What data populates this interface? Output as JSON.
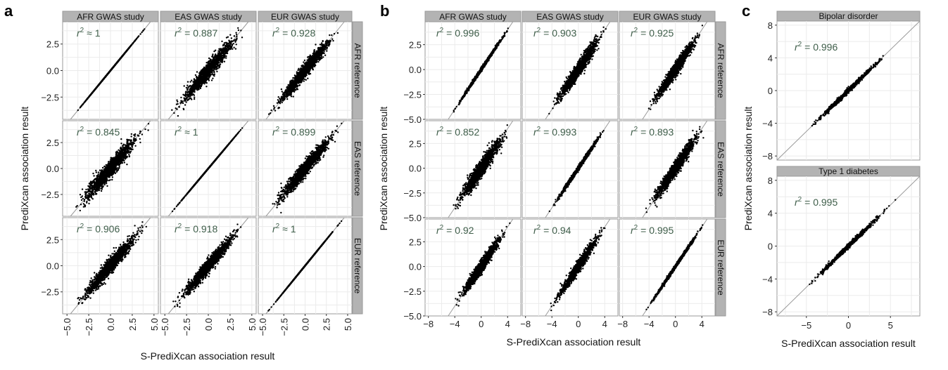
{
  "colors": {
    "r2_text": "#3f5e4a",
    "strip_bg": "#b3b3b3",
    "grid": "#ebebeb",
    "point": "#000000",
    "diag": "#9a9a9a"
  },
  "chart_data": [
    {
      "panel": "a",
      "type": "scatter",
      "facet_columns": [
        "AFR GWAS study",
        "EAS GWAS study",
        "EUR GWAS study"
      ],
      "facet_rows": [
        "AFR reference",
        "EAS reference",
        "EUR reference"
      ],
      "xlabel": "S-PrediXcan association result",
      "ylabel": "PrediXcan association result",
      "xlim": [
        -5.5,
        5.5
      ],
      "ylim": [
        -4.6,
        4.6
      ],
      "xticks": [
        "−5.0",
        "−2.5",
        "0.0",
        "2.5",
        "5.0"
      ],
      "xtick_values": [
        -5.0,
        -2.5,
        0.0,
        2.5,
        5.0
      ],
      "yticks": [
        "2.5",
        "0.0",
        "−2.5"
      ],
      "ytick_values": [
        2.5,
        0.0,
        -2.5
      ],
      "reference_line": "y = x",
      "cells": [
        {
          "row": 0,
          "col": 0,
          "r2_symbol": "≈",
          "r2_value": "1",
          "spread": 0.0
        },
        {
          "row": 0,
          "col": 1,
          "r2_symbol": "=",
          "r2_value": "0.887",
          "spread": 0.55
        },
        {
          "row": 0,
          "col": 2,
          "r2_symbol": "=",
          "r2_value": "0.928",
          "spread": 0.45
        },
        {
          "row": 1,
          "col": 0,
          "r2_symbol": "=",
          "r2_value": "0.845",
          "spread": 0.6
        },
        {
          "row": 1,
          "col": 1,
          "r2_symbol": "≈",
          "r2_value": "1",
          "spread": 0.0
        },
        {
          "row": 1,
          "col": 2,
          "r2_symbol": "=",
          "r2_value": "0.899",
          "spread": 0.5
        },
        {
          "row": 2,
          "col": 0,
          "r2_symbol": "=",
          "r2_value": "0.906",
          "spread": 0.5
        },
        {
          "row": 2,
          "col": 1,
          "r2_symbol": "=",
          "r2_value": "0.918",
          "spread": 0.45
        },
        {
          "row": 2,
          "col": 2,
          "r2_symbol": "≈",
          "r2_value": "1",
          "spread": 0.0
        }
      ]
    },
    {
      "panel": "b",
      "type": "scatter",
      "facet_columns": [
        "AFR GWAS study",
        "EAS GWAS study",
        "EUR GWAS study"
      ],
      "facet_rows": [
        "AFR reference",
        "EAS reference",
        "EUR reference"
      ],
      "xlabel": "S-PrediXcan association result",
      "ylabel": "PrediXcan association result",
      "xlim": [
        -8.5,
        6.0
      ],
      "ylim": [
        -5.0,
        4.8
      ],
      "xticks": [
        "−8",
        "−4",
        "0",
        "4"
      ],
      "xtick_values": [
        -8,
        -4,
        0,
        4
      ],
      "yticks": [
        "2.5",
        "0.0",
        "−2.5",
        "−5.0"
      ],
      "ytick_values": [
        2.5,
        0.0,
        -2.5,
        -5.0
      ],
      "reference_line": "y = x",
      "cells": [
        {
          "row": 0,
          "col": 0,
          "r2_symbol": "=",
          "r2_value": "0.996",
          "spread": 0.12
        },
        {
          "row": 0,
          "col": 1,
          "r2_symbol": "=",
          "r2_value": "0.903",
          "spread": 0.5
        },
        {
          "row": 0,
          "col": 2,
          "r2_symbol": "=",
          "r2_value": "0.925",
          "spread": 0.45
        },
        {
          "row": 1,
          "col": 0,
          "r2_symbol": "=",
          "r2_value": "0.852",
          "spread": 0.6
        },
        {
          "row": 1,
          "col": 1,
          "r2_symbol": "=",
          "r2_value": "0.993",
          "spread": 0.15
        },
        {
          "row": 1,
          "col": 2,
          "r2_symbol": "=",
          "r2_value": "0.893",
          "spread": 0.5
        },
        {
          "row": 2,
          "col": 0,
          "r2_symbol": "=",
          "r2_value": "0.92",
          "spread": 0.45
        },
        {
          "row": 2,
          "col": 1,
          "r2_symbol": "=",
          "r2_value": "0.94",
          "spread": 0.4
        },
        {
          "row": 2,
          "col": 2,
          "r2_symbol": "=",
          "r2_value": "0.995",
          "spread": 0.12
        }
      ]
    },
    {
      "panel": "c",
      "type": "scatter",
      "facets": [
        "Bipolar disorder",
        "Type 1 diabetes"
      ],
      "xlabel": "S-PrediXcan association result",
      "ylabel": "PrediXcan association result",
      "xlim": [
        -8.5,
        8.5
      ],
      "ylim": [
        -8.5,
        8.5
      ],
      "xticks": [
        "−5",
        "0",
        "5"
      ],
      "xtick_values": [
        -5,
        0,
        5
      ],
      "yticks": [
        "8",
        "4",
        "0",
        "−4",
        "−8"
      ],
      "ytick_values": [
        8,
        4,
        0,
        -4,
        -8
      ],
      "reference_line": "y = x",
      "cells": [
        {
          "facet": 0,
          "r2_symbol": "=",
          "r2_value": "0.996",
          "spread": 0.2,
          "range": [
            -4.5,
            4.5
          ]
        },
        {
          "facet": 1,
          "r2_symbol": "=",
          "r2_value": "0.995",
          "spread": 0.2,
          "range": [
            -7.5,
            7.5
          ]
        }
      ]
    }
  ]
}
